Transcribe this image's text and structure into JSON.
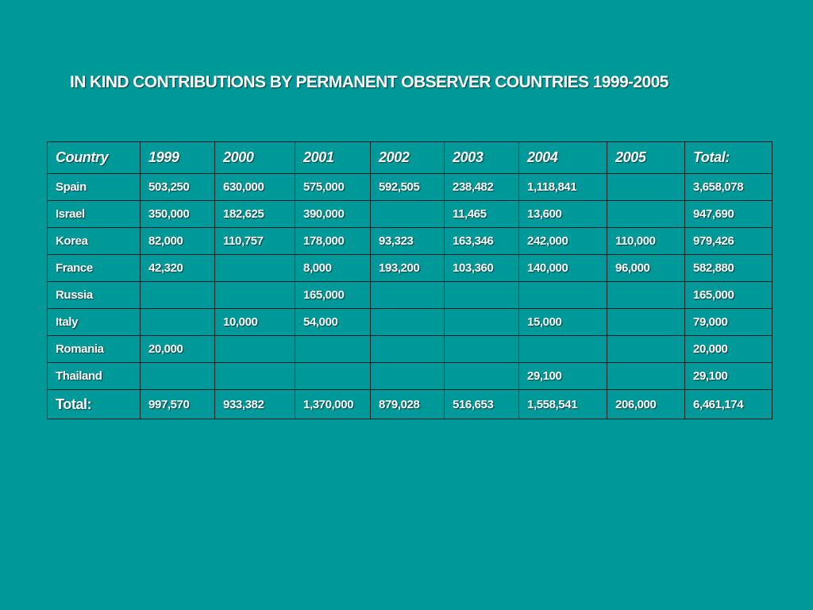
{
  "title": "IN KIND CONTRIBUTIONS BY PERMANENT OBSERVER COUNTRIES 1999-2005",
  "table": {
    "headers": [
      "Country",
      "1999",
      "2000",
      "2001",
      "2002",
      "2003",
      "2004",
      "2005",
      "Total:"
    ],
    "rows": [
      {
        "country": "Spain",
        "values": [
          "503,250",
          "630,000",
          "575,000",
          "592,505",
          "238,482",
          "1,118,841",
          "",
          "3,658,078"
        ]
      },
      {
        "country": "Israel",
        "values": [
          "350,000",
          "182,625",
          "390,000",
          "",
          "11,465",
          "13,600",
          "",
          "947,690"
        ]
      },
      {
        "country": "Korea",
        "values": [
          "82,000",
          "110,757",
          "178,000",
          "93,323",
          "163,346",
          "242,000",
          "110,000",
          "979,426"
        ]
      },
      {
        "country": "France",
        "values": [
          "42,320",
          "",
          "8,000",
          "193,200",
          "103,360",
          "140,000",
          "96,000",
          "582,880"
        ]
      },
      {
        "country": "Russia",
        "values": [
          "",
          "",
          "165,000",
          "",
          "",
          "",
          "",
          "165,000"
        ]
      },
      {
        "country": "Italy",
        "values": [
          "",
          "10,000",
          "54,000",
          "",
          "",
          "15,000",
          "",
          "79,000"
        ]
      },
      {
        "country": "Romania",
        "values": [
          "20,000",
          "",
          "",
          "",
          "",
          "",
          "",
          "20,000"
        ]
      },
      {
        "country": "Thailand",
        "values": [
          "",
          "",
          "",
          "",
          "",
          "29,100",
          "",
          "29,100"
        ]
      }
    ],
    "total": {
      "label": "Total:",
      "values": [
        "997,570",
        "933,382",
        "1,370,000",
        "879,028",
        "516,653",
        "1,558,541",
        "206,000",
        "6,461,174"
      ]
    }
  }
}
